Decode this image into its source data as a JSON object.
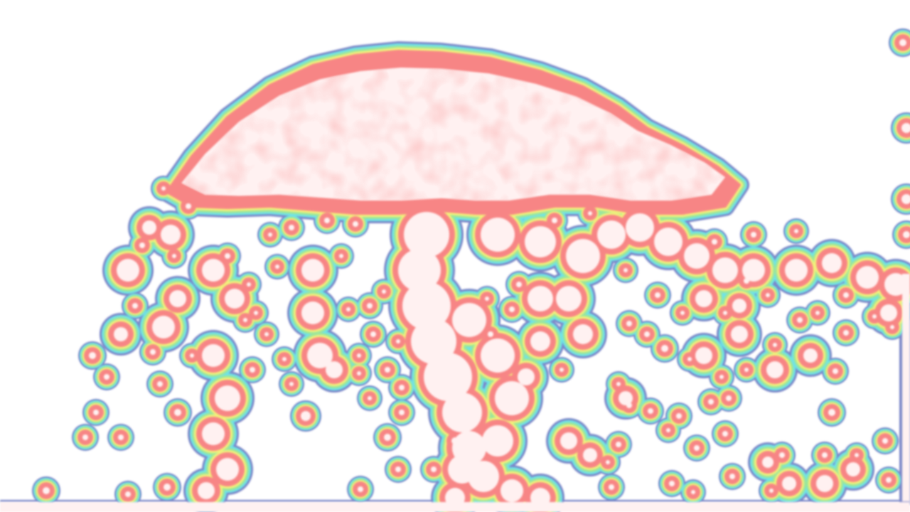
{
  "image": {
    "subject": "heatmap-density-blobs",
    "colors": {
      "background": "#ffffff",
      "ring_outer": "#7a86c8",
      "ring_cyan": "#6fe3e6",
      "ring_green": "#9ee69a",
      "ring_yellow": "#f2f27a",
      "ring_core": "#f78585",
      "core_fill": "#fff1f1"
    }
  }
}
